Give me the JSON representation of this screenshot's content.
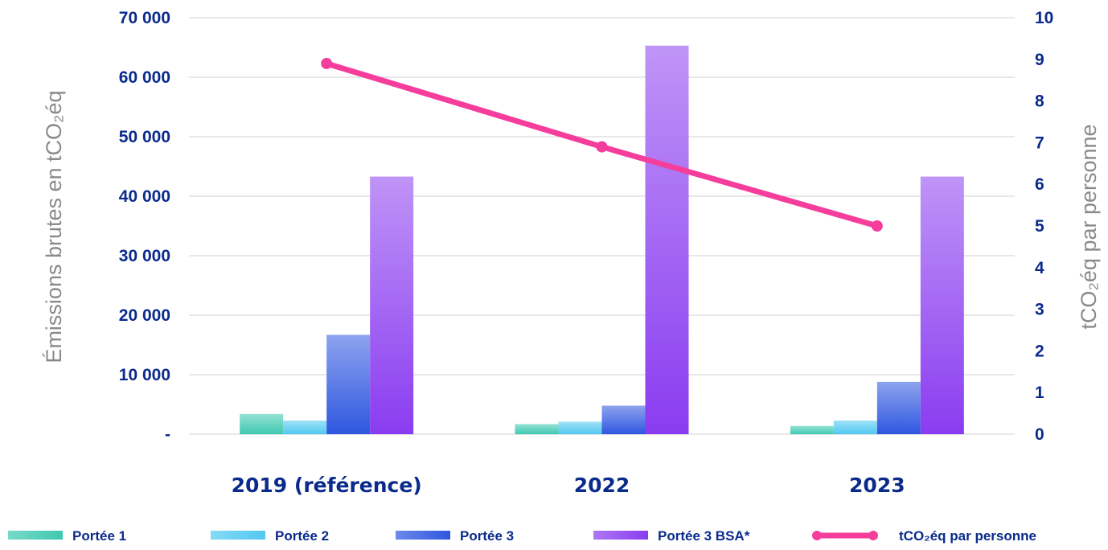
{
  "chart_data": {
    "type": "bar",
    "categories": [
      "2019 (référence)",
      "2022",
      "2023"
    ],
    "series": [
      {
        "name": "Portée 1",
        "values": [
          3400,
          1700,
          1400
        ],
        "color": "#3ec9b0"
      },
      {
        "name": "Portée 2",
        "values": [
          2300,
          2100,
          2300
        ],
        "color": "#52c8f0"
      },
      {
        "name": "Portée 3",
        "values": [
          16700,
          4800,
          8800
        ],
        "color": "#2f57e0"
      },
      {
        "name": "Portée 3 BSA*",
        "values": [
          43300,
          65300,
          43300
        ],
        "color": "#8a3cf0"
      }
    ],
    "line_series": {
      "name": "tCO₂éq par personne",
      "values": [
        8.9,
        6.9,
        5.0
      ],
      "color": "#f53d9c"
    },
    "ylabel": "Émissions brutes en tCO₂éq",
    "y2label": "tCO₂éq par personne",
    "ylim": [
      0,
      70000
    ],
    "y2lim": [
      0,
      10
    ],
    "yticks": [
      "-",
      "10 000",
      "20 000",
      "30 000",
      "40 000",
      "50 000",
      "60 000",
      "70 000"
    ],
    "y2ticks": [
      "0",
      "1",
      "2",
      "3",
      "4",
      "5",
      "6",
      "7",
      "8",
      "9",
      "10"
    ],
    "grid": true,
    "legend_position": "bottom"
  }
}
